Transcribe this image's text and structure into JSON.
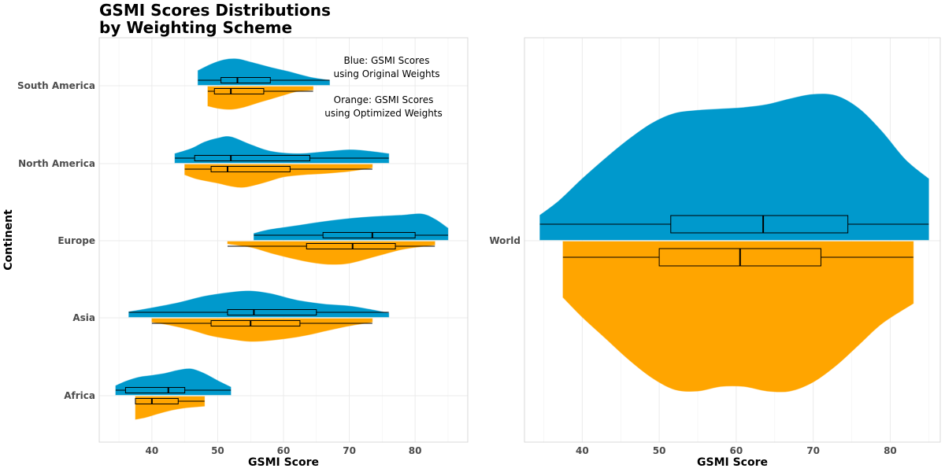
{
  "title_lines": [
    "GSMI Scores Distributions",
    "by Weighting Scheme"
  ],
  "colors": {
    "original": "#0099CC",
    "optimized": "#FFA500",
    "grid": "#EBEBEB",
    "panel_border": "#D9D9D9",
    "box_outline": "#000000"
  },
  "chart_data": [
    {
      "type": "violin",
      "subtype": "split half-violin with boxplots",
      "xlabel": "GSMI Score",
      "ylabel": "Continent",
      "xlim": [
        32,
        88
      ],
      "xticks": [
        40,
        50,
        60,
        70,
        80
      ],
      "grid": true,
      "annotations": [
        {
          "id": "blue_note",
          "lines": [
            "Blue: GSMI Scores",
            "using Original Weights"
          ]
        },
        {
          "id": "orange_note",
          "lines": [
            "Orange: GSMI Scores",
            "using Optimized Weights"
          ]
        }
      ],
      "categories": [
        "South America",
        "North America",
        "Europe",
        "Asia",
        "Africa"
      ],
      "series": [
        {
          "key": "original",
          "groups": [
            {
              "category": "South America",
              "min": 47,
              "q1": 50.5,
              "median": 53,
              "q3": 58,
              "max": 67,
              "density": [
                [
                  47,
                  0.55
                ],
                [
                  49,
                  0.8
                ],
                [
                  51,
                  0.97
                ],
                [
                  53,
                  1.0
                ],
                [
                  55,
                  0.88
                ],
                [
                  58,
                  0.68
                ],
                [
                  61,
                  0.5
                ],
                [
                  64,
                  0.3
                ],
                [
                  67,
                  0.18
                ]
              ]
            },
            {
              "category": "North America",
              "min": 43.5,
              "q1": 46.5,
              "median": 52,
              "q3": 64,
              "max": 76,
              "density": [
                [
                  43.5,
                  0.35
                ],
                [
                  46,
                  0.55
                ],
                [
                  48,
                  0.8
                ],
                [
                  50,
                  0.95
                ],
                [
                  52,
                  1.0
                ],
                [
                  55,
                  0.7
                ],
                [
                  58,
                  0.45
                ],
                [
                  62,
                  0.35
                ],
                [
                  66,
                  0.42
                ],
                [
                  70,
                  0.5
                ],
                [
                  73,
                  0.45
                ],
                [
                  76,
                  0.35
                ]
              ]
            },
            {
              "category": "Europe",
              "min": 55.5,
              "q1": 66,
              "median": 73.5,
              "q3": 80,
              "max": 85,
              "density": [
                [
                  55.5,
                  0.25
                ],
                [
                  58,
                  0.4
                ],
                [
                  62,
                  0.55
                ],
                [
                  66,
                  0.7
                ],
                [
                  70,
                  0.82
                ],
                [
                  74,
                  0.9
                ],
                [
                  78,
                  0.95
                ],
                [
                  81,
                  1.0
                ],
                [
                  83,
                  0.8
                ],
                [
                  85,
                  0.45
                ]
              ]
            },
            {
              "category": "Asia",
              "min": 36.5,
              "q1": 51.5,
              "median": 55.5,
              "q3": 65,
              "max": 76,
              "density": [
                [
                  36.5,
                  0.2
                ],
                [
                  40,
                  0.35
                ],
                [
                  44,
                  0.55
                ],
                [
                  48,
                  0.8
                ],
                [
                  52,
                  0.95
                ],
                [
                  55,
                  1.0
                ],
                [
                  58,
                  0.9
                ],
                [
                  62,
                  0.65
                ],
                [
                  66,
                  0.5
                ],
                [
                  70,
                  0.42
                ],
                [
                  73,
                  0.3
                ],
                [
                  76,
                  0.15
                ]
              ]
            },
            {
              "category": "Africa",
              "min": 34.5,
              "q1": 36,
              "median": 42.5,
              "q3": 45,
              "max": 52,
              "density": [
                [
                  34.5,
                  0.35
                ],
                [
                  36,
                  0.52
                ],
                [
                  38,
                  0.68
                ],
                [
                  40,
                  0.75
                ],
                [
                  42,
                  0.83
                ],
                [
                  44,
                  0.95
                ],
                [
                  46,
                  1.0
                ],
                [
                  48,
                  0.82
                ],
                [
                  50,
                  0.55
                ],
                [
                  52,
                  0.3
                ]
              ]
            }
          ]
        },
        {
          "key": "optimized",
          "groups": [
            {
              "category": "South America",
              "min": 48.5,
              "q1": 49.5,
              "median": 52,
              "q3": 57,
              "max": 64.5,
              "density": [
                [
                  48.5,
                  0.85
                ],
                [
                  50,
                  0.95
                ],
                [
                  52,
                  1.0
                ],
                [
                  54,
                  0.9
                ],
                [
                  56,
                  0.72
                ],
                [
                  58,
                  0.55
                ],
                [
                  60,
                  0.38
                ],
                [
                  62,
                  0.22
                ],
                [
                  64.5,
                  0.15
                ]
              ]
            },
            {
              "category": "North America",
              "min": 45,
              "q1": 49,
              "median": 51.5,
              "q3": 61,
              "max": 73.5,
              "density": [
                [
                  45,
                  0.45
                ],
                [
                  47,
                  0.65
                ],
                [
                  50,
                  0.82
                ],
                [
                  52,
                  0.95
                ],
                [
                  54,
                  1.0
                ],
                [
                  57,
                  0.8
                ],
                [
                  60,
                  0.55
                ],
                [
                  63,
                  0.45
                ],
                [
                  66,
                  0.4
                ],
                [
                  70,
                  0.3
                ],
                [
                  73.5,
                  0.15
                ]
              ]
            },
            {
              "category": "Europe",
              "min": 51.5,
              "q1": 63.5,
              "median": 70.5,
              "q3": 77,
              "max": 83,
              "density": [
                [
                  51.5,
                  0.1
                ],
                [
                  55,
                  0.25
                ],
                [
                  58,
                  0.5
                ],
                [
                  61,
                  0.72
                ],
                [
                  64,
                  0.9
                ],
                [
                  67,
                  1.0
                ],
                [
                  70,
                  0.95
                ],
                [
                  74,
                  0.65
                ],
                [
                  78,
                  0.35
                ],
                [
                  81,
                  0.22
                ],
                [
                  83,
                  0.15
                ]
              ]
            },
            {
              "category": "Asia",
              "min": 40,
              "q1": 49,
              "median": 55,
              "q3": 62.5,
              "max": 73.5,
              "density": [
                [
                  40,
                  0.15
                ],
                [
                  43,
                  0.3
                ],
                [
                  46,
                  0.5
                ],
                [
                  49,
                  0.75
                ],
                [
                  52,
                  0.9
                ],
                [
                  55,
                  1.0
                ],
                [
                  58,
                  0.95
                ],
                [
                  61,
                  0.85
                ],
                [
                  64,
                  0.7
                ],
                [
                  67,
                  0.5
                ],
                [
                  70,
                  0.32
                ],
                [
                  73.5,
                  0.15
                ]
              ]
            },
            {
              "category": "Africa",
              "min": 37.5,
              "q1": 37.5,
              "median": 40,
              "q3": 44,
              "max": 48,
              "density": [
                [
                  37.5,
                  1.0
                ],
                [
                  39,
                  0.92
                ],
                [
                  41,
                  0.75
                ],
                [
                  43,
                  0.6
                ],
                [
                  45,
                  0.5
                ],
                [
                  47,
                  0.45
                ],
                [
                  48,
                  0.42
                ]
              ]
            }
          ]
        }
      ]
    },
    {
      "type": "violin",
      "subtype": "split half-violin with boxplots",
      "xlabel": "GSMI Score",
      "ylabel": "",
      "xlim": [
        32.5,
        86.5
      ],
      "xticks": [
        40,
        50,
        60,
        70,
        80
      ],
      "grid": true,
      "categories": [
        "World"
      ],
      "series": [
        {
          "key": "original",
          "groups": [
            {
              "category": "World",
              "min": 34.5,
              "q1": 51.5,
              "median": 63.5,
              "q3": 74.5,
              "max": 85,
              "density": [
                [
                  34.5,
                  0.17
                ],
                [
                  37,
                  0.27
                ],
                [
                  40,
                  0.42
                ],
                [
                  43,
                  0.56
                ],
                [
                  46,
                  0.69
                ],
                [
                  49,
                  0.8
                ],
                [
                  52,
                  0.87
                ],
                [
                  55,
                  0.89
                ],
                [
                  58,
                  0.9
                ],
                [
                  61,
                  0.91
                ],
                [
                  64,
                  0.93
                ],
                [
                  67,
                  0.97
                ],
                [
                  70,
                  1.0
                ],
                [
                  73,
                  0.99
                ],
                [
                  76,
                  0.9
                ],
                [
                  79,
                  0.74
                ],
                [
                  82,
                  0.55
                ],
                [
                  85,
                  0.42
                ]
              ]
            }
          ]
        },
        {
          "key": "optimized",
          "groups": [
            {
              "category": "World",
              "min": 37.5,
              "q1": 50,
              "median": 60.5,
              "q3": 71,
              "max": 83,
              "density": [
                [
                  37.5,
                  0.37
                ],
                [
                  40,
                  0.5
                ],
                [
                  43,
                  0.64
                ],
                [
                  46,
                  0.78
                ],
                [
                  49,
                  0.9
                ],
                [
                  52,
                  0.98
                ],
                [
                  55,
                  0.99
                ],
                [
                  58,
                  0.96
                ],
                [
                  61,
                  0.96
                ],
                [
                  64,
                  0.99
                ],
                [
                  67,
                  0.99
                ],
                [
                  70,
                  0.93
                ],
                [
                  73,
                  0.82
                ],
                [
                  76,
                  0.68
                ],
                [
                  79,
                  0.54
                ],
                [
                  83,
                  0.41
                ]
              ]
            }
          ]
        }
      ]
    }
  ]
}
